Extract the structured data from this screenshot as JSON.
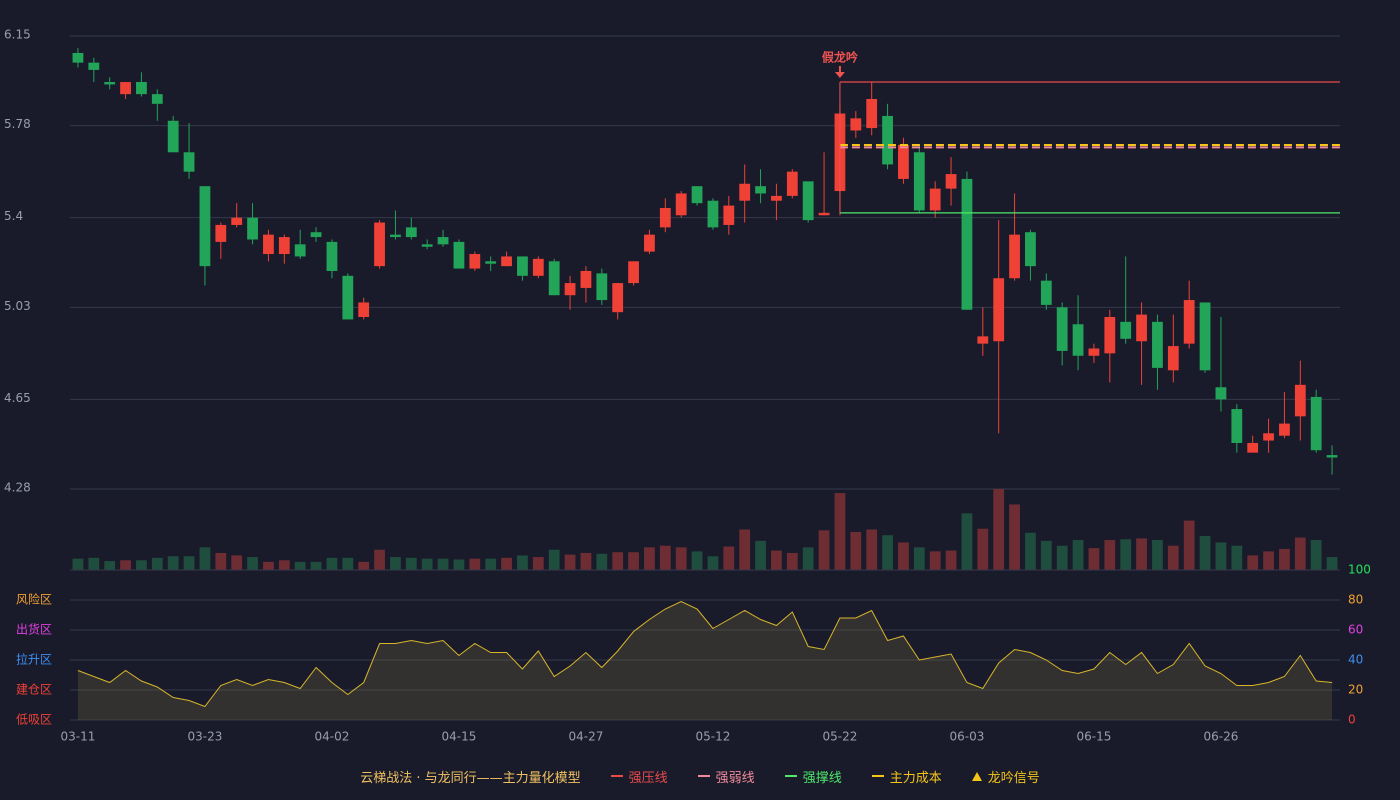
{
  "chart_data": [
    {
      "type": "candlestick",
      "categories": [
        "03-11",
        null,
        null,
        null,
        null,
        null,
        null,
        null,
        "03-23",
        null,
        null,
        null,
        null,
        null,
        null,
        null,
        "04-02",
        null,
        null,
        null,
        null,
        null,
        null,
        null,
        "04-15",
        null,
        null,
        null,
        null,
        null,
        null,
        null,
        "04-27",
        null,
        null,
        null,
        null,
        null,
        null,
        null,
        "05-12",
        null,
        null,
        null,
        null,
        null,
        null,
        null,
        "05-22",
        null,
        null,
        null,
        null,
        null,
        null,
        null,
        "06-03",
        null,
        null,
        null,
        null,
        null,
        null,
        null,
        "06-15",
        null,
        null,
        null,
        null,
        null,
        null,
        null,
        "06-26",
        null,
        null,
        null,
        null,
        null,
        null,
        null
      ],
      "open": [
        6.08,
        6.04,
        5.96,
        5.91,
        5.96,
        5.91,
        5.8,
        5.67,
        5.53,
        5.3,
        5.37,
        5.4,
        5.25,
        5.25,
        5.29,
        5.34,
        5.3,
        5.16,
        4.99,
        5.2,
        5.33,
        5.36,
        5.29,
        5.32,
        5.3,
        5.19,
        5.22,
        5.2,
        5.24,
        5.16,
        5.22,
        5.08,
        5.11,
        5.17,
        5.01,
        5.13,
        5.26,
        5.36,
        5.41,
        5.53,
        5.47,
        5.37,
        5.47,
        5.53,
        5.47,
        5.49,
        5.55,
        5.41,
        5.51,
        5.76,
        5.77,
        5.82,
        5.56,
        5.67,
        5.43,
        5.52,
        5.56,
        4.88,
        4.89,
        5.15,
        5.34,
        5.14,
        5.03,
        4.96,
        4.83,
        4.84,
        4.97,
        4.89,
        4.97,
        4.77,
        4.88,
        5.05,
        4.7,
        4.61,
        4.43,
        4.48,
        4.5,
        4.58,
        4.66,
        4.42
      ],
      "high": [
        6.1,
        6.06,
        5.98,
        5.96,
        6.0,
        5.93,
        5.82,
        5.79,
        5.53,
        5.38,
        5.46,
        5.46,
        5.35,
        5.33,
        5.35,
        5.36,
        5.31,
        5.17,
        5.07,
        5.39,
        5.43,
        5.4,
        5.31,
        5.35,
        5.31,
        5.26,
        5.24,
        5.26,
        5.24,
        5.24,
        5.23,
        5.16,
        5.2,
        5.19,
        5.13,
        5.22,
        5.35,
        5.48,
        5.51,
        5.53,
        5.48,
        5.49,
        5.62,
        5.6,
        5.54,
        5.6,
        5.55,
        5.67,
        5.86,
        5.84,
        5.96,
        5.87,
        5.73,
        5.7,
        5.55,
        5.65,
        5.59,
        5.03,
        5.39,
        5.5,
        5.35,
        5.17,
        5.05,
        5.08,
        4.88,
        5.02,
        5.24,
        5.05,
        5.0,
        5.0,
        5.14,
        5.05,
        4.99,
        4.63,
        4.5,
        4.57,
        4.68,
        4.81,
        4.69,
        4.46
      ],
      "low": [
        6.02,
        5.96,
        5.93,
        5.89,
        5.9,
        5.8,
        5.67,
        5.56,
        5.12,
        5.23,
        5.36,
        5.29,
        5.22,
        5.21,
        5.23,
        5.3,
        5.15,
        4.98,
        4.98,
        5.19,
        5.31,
        5.31,
        5.27,
        5.28,
        5.19,
        5.18,
        5.18,
        5.2,
        5.14,
        5.15,
        5.08,
        5.02,
        5.05,
        5.04,
        4.98,
        5.12,
        5.25,
        5.34,
        5.4,
        5.45,
        5.35,
        5.33,
        5.38,
        5.46,
        5.39,
        5.48,
        5.38,
        5.41,
        5.41,
        5.73,
        5.74,
        5.6,
        5.54,
        5.42,
        5.4,
        5.45,
        5.02,
        4.83,
        4.51,
        5.14,
        5.14,
        5.02,
        4.79,
        4.77,
        4.8,
        4.72,
        4.88,
        4.71,
        4.69,
        4.72,
        4.86,
        4.76,
        4.6,
        4.43,
        4.43,
        4.43,
        4.49,
        4.48,
        4.43,
        4.34
      ],
      "close": [
        6.04,
        6.01,
        5.95,
        5.96,
        5.91,
        5.87,
        5.67,
        5.59,
        5.2,
        5.37,
        5.4,
        5.31,
        5.33,
        5.32,
        5.24,
        5.32,
        5.18,
        4.98,
        5.05,
        5.38,
        5.32,
        5.32,
        5.28,
        5.29,
        5.19,
        5.25,
        5.21,
        5.24,
        5.16,
        5.23,
        5.08,
        5.13,
        5.18,
        5.06,
        5.13,
        5.22,
        5.33,
        5.44,
        5.5,
        5.46,
        5.36,
        5.45,
        5.54,
        5.5,
        5.49,
        5.59,
        5.39,
        5.42,
        5.83,
        5.81,
        5.89,
        5.62,
        5.7,
        5.43,
        5.52,
        5.58,
        5.02,
        4.91,
        5.15,
        5.33,
        5.2,
        5.04,
        4.85,
        4.83,
        4.86,
        4.99,
        4.9,
        5.0,
        4.78,
        4.87,
        5.06,
        4.77,
        4.65,
        4.47,
        4.47,
        4.51,
        4.55,
        4.71,
        4.44,
        4.41
      ],
      "up_color": "#ef4136",
      "down_color": "#22a559",
      "ylim": [
        4.28,
        6.15
      ],
      "yticks": [
        4.28,
        4.65,
        5.03,
        5.4,
        5.78,
        6.15
      ],
      "grid": true,
      "lines": [
        {
          "name": "强压线",
          "value": 5.96,
          "color": "#e84a4a",
          "style": "solid"
        },
        {
          "name": "强弱线",
          "value": 5.69,
          "color": "#f28a9a",
          "style": "dashed"
        },
        {
          "name": "强撑线",
          "value": 5.42,
          "color": "#4ee86a",
          "style": "solid"
        },
        {
          "name": "主力成本",
          "value": 5.7,
          "color": "#f5c518",
          "style": "dashed"
        }
      ],
      "annotation": {
        "text": "假龙吟",
        "x": "05-22",
        "color": "#ef5350"
      },
      "signal": {
        "name": "龙吟信号",
        "color": "#f5c518"
      },
      "legend_title": "云梯战法 · 与龙同行——主力量化模型"
    },
    {
      "type": "volume",
      "values": [
        14,
        15,
        11,
        12,
        12,
        15,
        17,
        17,
        28,
        21,
        18,
        16,
        10,
        12,
        10,
        10,
        15,
        15,
        10,
        25,
        16,
        15,
        14,
        14,
        13,
        14,
        14,
        15,
        18,
        16,
        25,
        19,
        21,
        20,
        22,
        22,
        28,
        30,
        28,
        23,
        17,
        29,
        50,
        36,
        24,
        21,
        28,
        49,
        95,
        47,
        50,
        43,
        34,
        28,
        23,
        24,
        70,
        51,
        100,
        81,
        46,
        36,
        30,
        37,
        27,
        37,
        38,
        39,
        37,
        30,
        61,
        42,
        34,
        30,
        18,
        23,
        26,
        40,
        37,
        16
      ],
      "ylim": [
        0,
        100
      ],
      "up_color": "#6e2c33",
      "down_color": "#1f4d3e"
    },
    {
      "type": "area",
      "values": [
        33,
        29,
        25,
        33,
        26,
        22,
        15,
        13,
        9,
        23,
        27,
        23,
        27,
        25,
        21,
        35,
        25,
        17,
        25,
        51,
        51,
        53,
        51,
        53,
        43,
        51,
        45,
        45,
        34,
        46,
        29,
        36,
        45,
        35,
        46,
        59,
        67,
        74,
        79,
        74,
        61,
        67,
        73,
        67,
        63,
        72,
        49,
        47,
        68,
        68,
        73,
        53,
        56,
        40,
        42,
        44,
        25,
        21,
        38,
        47,
        45,
        40,
        33,
        31,
        34,
        45,
        37,
        45,
        31,
        37,
        51,
        36,
        31,
        23,
        23,
        25,
        29,
        43,
        26,
        25
      ],
      "color": "#d8b52a",
      "ylim": [
        0,
        100
      ],
      "yticks": [
        0,
        20,
        40,
        60,
        80,
        100
      ],
      "ytick_colors": [
        "#ef4136",
        "#f0a030",
        "#3d8ef0",
        "#e040e0",
        "#f0a030",
        "#22e05a"
      ],
      "zones": [
        {
          "label": "低吸区",
          "value": 0,
          "color": "#ef4136"
        },
        {
          "label": "建仓区",
          "value": 20,
          "color": "#ef4136"
        },
        {
          "label": "拉升区",
          "value": 40,
          "color": "#3d8ef0"
        },
        {
          "label": "出货区",
          "value": 60,
          "color": "#e040e0"
        },
        {
          "label": "风险区",
          "value": 80,
          "color": "#f0a030"
        }
      ]
    }
  ]
}
